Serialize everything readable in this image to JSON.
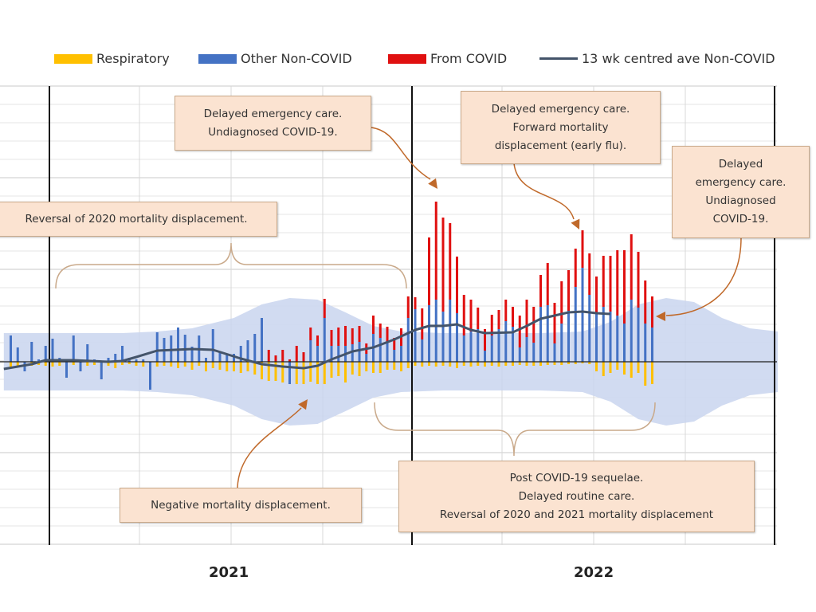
{
  "legend": {
    "respiratory": "Respiratory",
    "other": "Other Non-COVID",
    "covid": "From COVID",
    "ave": "13 wk centred ave Non-COVID"
  },
  "colors": {
    "respiratory": "#ffc000",
    "other": "#4472c4",
    "covid": "#e01010",
    "ave": "#44546a",
    "band": "#c9d5ee",
    "annotation_fill": "#fbe3d1",
    "arrow": "#c0692a"
  },
  "annotations": {
    "a1": [
      "Delayed emergency care.",
      "Undiagnosed COVID-19."
    ],
    "a2": [
      "Delayed emergency care.",
      "Forward mortality",
      "displacement (early flu)."
    ],
    "a3": [
      "Delayed",
      "emergency care.",
      "Undiagnosed",
      "COVID-19."
    ],
    "a4": [
      "Reversal of 2020 mortality displacement."
    ],
    "a5": [
      "Negative mortality displacement."
    ],
    "a6": [
      "Post COVID-19 sequelae.",
      "Delayed routine care.",
      "Reversal of 2020 and 2021 mortality displacement"
    ]
  },
  "chart_data": {
    "type": "bar",
    "title": "",
    "xlabel": "",
    "ylabel": "",
    "x_unit": "week offset from start of 2021",
    "year_labels": [
      {
        "label": "2021",
        "week": 26
      },
      {
        "label": "2022",
        "week": 78
      }
    ],
    "year_boundaries": [
      0,
      52,
      104
    ],
    "xlim": [
      -7,
      104
    ],
    "ylim": [
      -300,
      300
    ],
    "grid": true,
    "legend_position": "top",
    "start_week": -6,
    "series": [
      {
        "name": "Other Non-COVID",
        "stack": "pos",
        "values": [
          33,
          18,
          -12,
          25,
          3,
          20,
          29,
          5,
          -20,
          33,
          -12,
          22,
          3,
          -22,
          5,
          10,
          20,
          5,
          3,
          3,
          -35,
          37,
          30,
          33,
          43,
          34,
          19,
          33,
          5,
          41,
          12,
          10,
          10,
          20,
          27,
          35,
          55,
          0,
          0,
          0,
          -28,
          0,
          0,
          27,
          20,
          55,
          20,
          20,
          20,
          22,
          25,
          10,
          35,
          30,
          25,
          15,
          20,
          55,
          66,
          28,
          71,
          78,
          63,
          78,
          61,
          33,
          38,
          41,
          14,
          33,
          41,
          51,
          44,
          18,
          31,
          24,
          69,
          71,
          23,
          48,
          64,
          94,
          118,
          84,
          61,
          69,
          63,
          58,
          48,
          78,
          68,
          48,
          43
        ]
      },
      {
        "name": "From COVID",
        "stack": "pos",
        "values": [
          0,
          0,
          0,
          0,
          0,
          0,
          0,
          0,
          0,
          0,
          0,
          0,
          0,
          0,
          0,
          0,
          0,
          0,
          0,
          0,
          0,
          0,
          0,
          0,
          0,
          0,
          0,
          0,
          0,
          0,
          0,
          0,
          0,
          0,
          0,
          0,
          0,
          15,
          8,
          15,
          3,
          20,
          12,
          16,
          13,
          24,
          20,
          23,
          25,
          20,
          20,
          13,
          23,
          18,
          19,
          15,
          22,
          27,
          15,
          39,
          85,
          123,
          118,
          96,
          71,
          51,
          40,
          27,
          27,
          26,
          24,
          27,
          25,
          40,
          47,
          45,
          40,
          53,
          51,
          53,
          51,
          48,
          47,
          52,
          46,
          64,
          70,
          82,
          92,
          82,
          70,
          54,
          39
        ]
      },
      {
        "name": "Respiratory",
        "stack": "neg",
        "values": [
          8,
          6,
          5,
          5,
          4,
          5,
          6,
          5,
          6,
          4,
          3,
          5,
          4,
          6,
          5,
          8,
          4,
          3,
          5,
          6,
          10,
          6,
          5,
          6,
          8,
          6,
          10,
          5,
          12,
          8,
          10,
          12,
          12,
          14,
          12,
          16,
          22,
          24,
          24,
          26,
          20,
          28,
          28,
          25,
          28,
          28,
          20,
          18,
          26,
          16,
          18,
          12,
          14,
          14,
          10,
          10,
          12,
          8,
          5,
          6,
          5,
          6,
          5,
          6,
          8,
          5,
          6,
          5,
          6,
          5,
          6,
          5,
          5,
          4,
          5,
          5,
          5,
          4,
          4,
          4,
          3,
          3,
          2,
          3,
          12,
          18,
          14,
          10,
          16,
          20,
          14,
          30,
          28
        ]
      },
      {
        "name": "13 wk centred ave Non-COVID",
        "type": "line",
        "points": [
          [
            -7,
            -9
          ],
          [
            -3,
            -3
          ],
          [
            -1,
            2
          ],
          [
            3,
            2
          ],
          [
            8,
            0
          ],
          [
            10,
            1
          ],
          [
            12,
            6
          ],
          [
            15,
            14
          ],
          [
            20,
            16
          ],
          [
            23,
            15
          ],
          [
            27,
            4
          ],
          [
            30,
            -3
          ],
          [
            33,
            -6
          ],
          [
            36,
            -8
          ],
          [
            38,
            -5
          ],
          [
            40,
            3
          ],
          [
            43,
            13
          ],
          [
            46,
            18
          ],
          [
            49,
            28
          ],
          [
            52,
            40
          ],
          [
            54,
            45
          ],
          [
            56,
            45
          ],
          [
            58,
            47
          ],
          [
            60,
            40
          ],
          [
            62,
            36
          ],
          [
            66,
            37
          ],
          [
            68,
            45
          ],
          [
            70,
            54
          ],
          [
            72,
            58
          ],
          [
            74,
            62
          ],
          [
            76,
            63
          ],
          [
            78,
            61
          ],
          [
            80,
            60
          ]
        ]
      },
      {
        "name": "Expected range",
        "type": "band",
        "points": [
          [
            -7,
            36
          ],
          [
            10,
            36
          ],
          [
            15,
            38
          ],
          [
            20,
            42
          ],
          [
            26,
            55
          ],
          [
            30,
            72
          ],
          [
            34,
            80
          ],
          [
            38,
            78
          ],
          [
            42,
            62
          ],
          [
            46,
            45
          ],
          [
            50,
            38
          ],
          [
            56,
            36
          ],
          [
            70,
            36
          ],
          [
            76,
            38
          ],
          [
            80,
            50
          ],
          [
            84,
            72
          ],
          [
            88,
            80
          ],
          [
            92,
            75
          ],
          [
            96,
            55
          ],
          [
            100,
            42
          ],
          [
            104,
            38
          ]
        ]
      }
    ]
  },
  "years": {
    "y2021": "2021",
    "y2022": "2022"
  }
}
